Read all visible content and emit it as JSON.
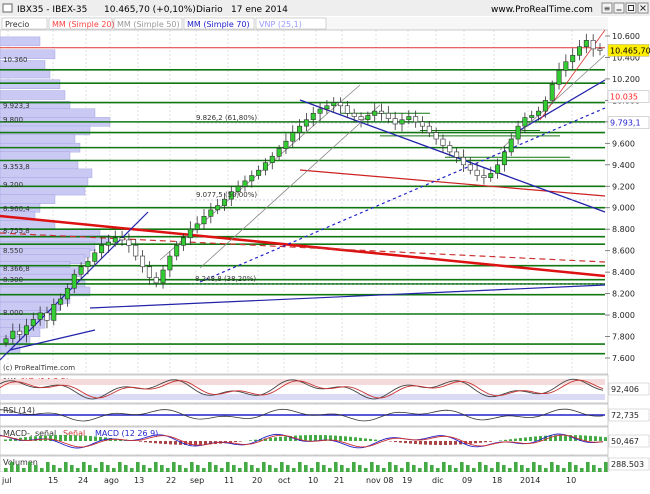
{
  "header": {
    "symbol": "IBX35 - IBEX-35",
    "price_change": "10.465,70 (+0,10%)",
    "period": "Diario",
    "date": "17 ene 2014",
    "site": "www.ProRealTime.com"
  },
  "legend": [
    {
      "label": "Precio",
      "color": "#333333"
    },
    {
      "label": "MM (Simple 20)",
      "color": "#ff4444"
    },
    {
      "label": "MM (Simple 50)",
      "color": "#999999"
    },
    {
      "label": "MM (Simple 70)",
      "color": "#2222cc"
    },
    {
      "label": "VNP (25,1)",
      "color": "#9999ff"
    }
  ],
  "price_axis_labels": [
    "10.600",
    "10.400",
    "10.200",
    "10.000",
    "9.800",
    "9.600",
    "9.400",
    "9.200",
    "9.000",
    "8.800",
    "8.600",
    "8.400",
    "8.200",
    "8.000",
    "7.800",
    "7.600"
  ],
  "price_badges": [
    {
      "text": "10.465,70",
      "value": 10465.7,
      "bg": "#ffee00",
      "fg": "#000000"
    },
    {
      "text": "10.035",
      "value": 10035,
      "bg": "#ffffff",
      "fg": "#ff2222"
    },
    {
      "text": "9.793,1",
      "value": 9793.1,
      "bg": "#ffffff",
      "fg": "#2222cc"
    }
  ],
  "volume_profile_labels": [
    "10.360",
    "9.923,3",
    "9.800",
    "9.353,8",
    "9.200",
    "8.960,4",
    "8.755,8",
    "8.550",
    "8.366,8",
    "8.300",
    "8.000"
  ],
  "annotations": [
    "9.826,2 (61,80%)",
    "9.077,5 (50,00%)",
    "8.248,8 (38,20%)"
  ],
  "watermark": "(c) ProRealTime.com",
  "indicators": {
    "stoch": {
      "label": "%K",
      "label2": "%D (14 3 5)",
      "value": "92,406"
    },
    "rsi": {
      "label": "RSI (14)",
      "value": "72,735"
    },
    "macd": {
      "label": "MACD-, señal",
      "label2": "Señal",
      "label3": "MACD (12 26 9)",
      "value": "50,467"
    },
    "volume": {
      "label": "Volumen",
      "value": "288.503"
    }
  },
  "x_axis_labels": [
    "jul",
    "15",
    "24",
    "ago",
    "13",
    "22",
    "sep",
    "11",
    "20",
    "oct",
    "10",
    "21",
    "nov 08",
    "19",
    "dic",
    "09",
    "18",
    "2014",
    "10"
  ],
  "chart_data": {
    "type": "candlestick",
    "ylim": [
      7500,
      10700
    ],
    "x_labels": [
      "jul",
      "15",
      "24",
      "ago",
      "13",
      "22",
      "sep",
      "11",
      "20",
      "oct",
      "10",
      "21",
      "nov 08",
      "19",
      "dic",
      "09",
      "18",
      "2014",
      "10"
    ],
    "close": [
      7780,
      7850,
      7820,
      7900,
      7960,
      8020,
      7950,
      8100,
      8150,
      8250,
      8380,
      8450,
      8500,
      8580,
      8650,
      8680,
      8720,
      8700,
      8650,
      8550,
      8450,
      8350,
      8300,
      8420,
      8550,
      8650,
      8720,
      8800,
      8850,
      8920,
      8980,
      9020,
      9080,
      9150,
      9200,
      9250,
      9300,
      9350,
      9420,
      9480,
      9550,
      9620,
      9700,
      9760,
      9820,
      9880,
      9920,
      9950,
      9980,
      9950,
      9880,
      9850,
      9820,
      9860,
      9900,
      9880,
      9830,
      9780,
      9820,
      9850,
      9800,
      9760,
      9700,
      9640,
      9580,
      9520,
      9470,
      9400,
      9350,
      9300,
      9280,
      9320,
      9400,
      9520,
      9640,
      9760,
      9840,
      9860,
      9900,
      10000,
      10150,
      10280,
      10360,
      10420,
      10500,
      10560,
      10480,
      10465
    ]
  }
}
